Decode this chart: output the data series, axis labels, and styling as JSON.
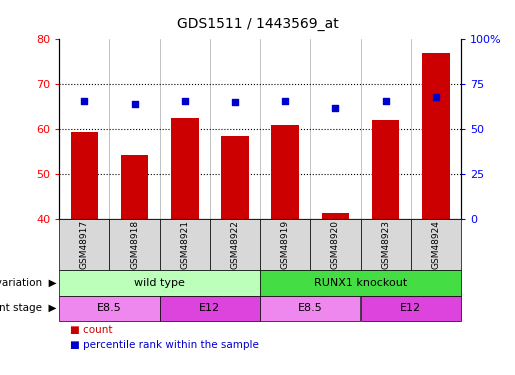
{
  "title": "GDS1511 / 1443569_at",
  "samples": [
    "GSM48917",
    "GSM48918",
    "GSM48921",
    "GSM48922",
    "GSM48919",
    "GSM48920",
    "GSM48923",
    "GSM48924"
  ],
  "counts": [
    59.5,
    54.3,
    62.5,
    58.5,
    61.0,
    41.5,
    62.0,
    77.0
  ],
  "percentiles": [
    66,
    64,
    66,
    65,
    66,
    62,
    66,
    68
  ],
  "ylim_left": [
    40,
    80
  ],
  "ylim_right": [
    0,
    100
  ],
  "yticks_left": [
    40,
    50,
    60,
    70,
    80
  ],
  "yticks_right": [
    0,
    25,
    50,
    75,
    100
  ],
  "yticklabels_right": [
    "0",
    "25",
    "50",
    "75",
    "100%"
  ],
  "bar_color": "#cc0000",
  "scatter_color": "#0000cc",
  "genotype_groups": [
    {
      "label": "wild type",
      "start": 0,
      "end": 4,
      "color": "#bbffbb"
    },
    {
      "label": "RUNX1 knockout",
      "start": 4,
      "end": 8,
      "color": "#44dd44"
    }
  ],
  "dev_stage_groups": [
    {
      "label": "E8.5",
      "start": 0,
      "end": 2,
      "color": "#ee88ee"
    },
    {
      "label": "E12",
      "start": 2,
      "end": 4,
      "color": "#dd44dd"
    },
    {
      "label": "E8.5",
      "start": 4,
      "end": 6,
      "color": "#ee88ee"
    },
    {
      "label": "E12",
      "start": 6,
      "end": 8,
      "color": "#dd44dd"
    }
  ],
  "legend_items": [
    {
      "label": "count",
      "color": "#cc0000"
    },
    {
      "label": "percentile rank within the sample",
      "color": "#0000cc"
    }
  ],
  "panel_bg": "#d8d8d8",
  "plot_bg": "#ffffff"
}
